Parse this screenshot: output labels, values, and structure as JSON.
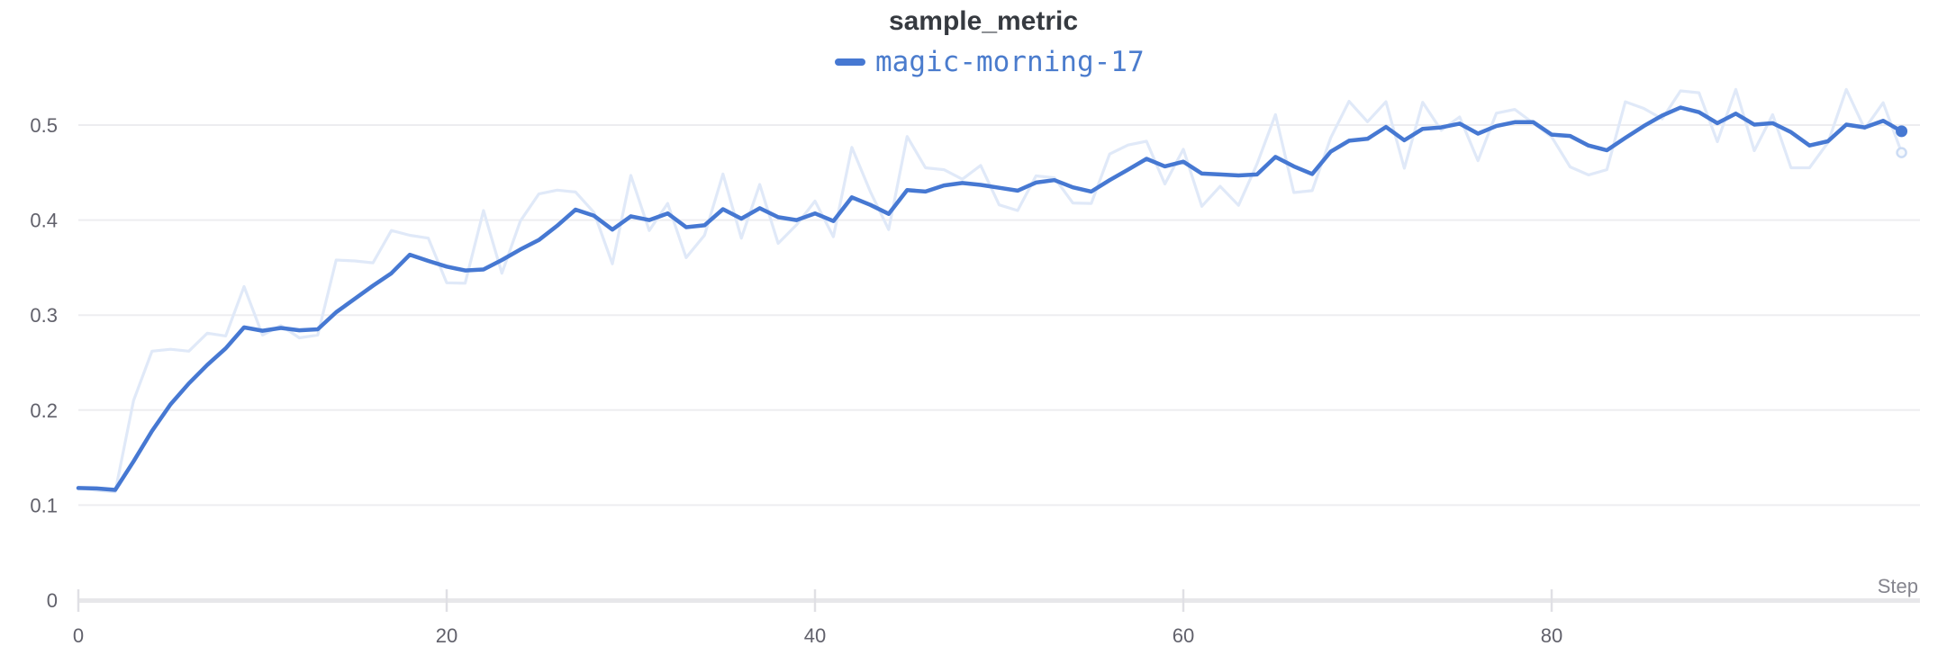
{
  "title": "sample_metric",
  "legend": {
    "run_name": "magic-morning-17"
  },
  "x_axis_label": "Step",
  "colors": {
    "smoothed_line": "#4678d2",
    "raw_line": "#e0e9f8",
    "raw_marker_ring": "#ccdcf4",
    "gridline": "#ededf0",
    "axis_band": "#e7e7ea",
    "tick_mark": "#e0e0e5",
    "title_text": "#363a40",
    "legend_text": "#4b7ccd",
    "tick_label_text": "#61616b"
  },
  "chart_data": {
    "type": "line",
    "title": "sample_metric",
    "xlabel": "Step",
    "ylabel": "",
    "xlim": [
      0,
      100
    ],
    "ylim": [
      0,
      0.55
    ],
    "grid": "horizontal",
    "legend_position": "top-center",
    "x_ticks": [
      0,
      20,
      40,
      60,
      80
    ],
    "y_ticks": [
      {
        "label": "0",
        "value": 0
      },
      {
        "label": "0.1",
        "value": 0.1
      },
      {
        "label": "0.2",
        "value": 0.2
      },
      {
        "label": "0.3",
        "value": 0.3
      },
      {
        "label": "0.4",
        "value": 0.4
      },
      {
        "label": "0.5",
        "value": 0.5
      }
    ],
    "steps": [
      0,
      1,
      2,
      3,
      4,
      5,
      6,
      7,
      8,
      9,
      10,
      11,
      12,
      13,
      14,
      15,
      16,
      17,
      18,
      19,
      20,
      21,
      22,
      23,
      24,
      25,
      26,
      27,
      28,
      29,
      30,
      31,
      32,
      33,
      34,
      35,
      36,
      37,
      38,
      39,
      40,
      41,
      42,
      43,
      44,
      45,
      46,
      47,
      48,
      49,
      50,
      51,
      52,
      53,
      54,
      55,
      56,
      57,
      58,
      59,
      60,
      61,
      62,
      63,
      64,
      65,
      66,
      67,
      68,
      69,
      70,
      71,
      72,
      73,
      74,
      75,
      76,
      77,
      78,
      79,
      80,
      81,
      82,
      83,
      84,
      85,
      86,
      87,
      88,
      89,
      90,
      91,
      92,
      93,
      94,
      95,
      96,
      97,
      98,
      99
    ],
    "series": [
      {
        "name": "magic-morning-17 (smoothed)",
        "values": [
          0.118,
          0.1175,
          0.116,
          0.146,
          0.178,
          0.206,
          0.228,
          0.2475,
          0.265,
          0.287,
          0.2835,
          0.2865,
          0.284,
          0.285,
          0.303,
          0.317,
          0.331,
          0.344,
          0.3635,
          0.357,
          0.351,
          0.347,
          0.348,
          0.358,
          0.369,
          0.379,
          0.394,
          0.411,
          0.4045,
          0.39,
          0.404,
          0.4,
          0.407,
          0.3925,
          0.3945,
          0.4115,
          0.4015,
          0.4125,
          0.403,
          0.4,
          0.407,
          0.399,
          0.424,
          0.416,
          0.4065,
          0.4315,
          0.43,
          0.4365,
          0.439,
          0.437,
          0.434,
          0.431,
          0.4395,
          0.442,
          0.4345,
          0.43,
          0.442,
          0.453,
          0.4645,
          0.4565,
          0.4615,
          0.449,
          0.448,
          0.447,
          0.448,
          0.4665,
          0.4565,
          0.4485,
          0.472,
          0.4835,
          0.4855,
          0.498,
          0.484,
          0.496,
          0.4975,
          0.5015,
          0.491,
          0.499,
          0.503,
          0.503,
          0.49,
          0.4885,
          0.4785,
          0.4735,
          0.4865,
          0.499,
          0.51,
          0.5185,
          0.5135,
          0.502,
          0.512,
          0.5005,
          0.502,
          0.4925,
          0.4785,
          0.483,
          0.5005,
          0.4975,
          0.5045,
          0.4935
        ]
      },
      {
        "name": "magic-morning-17 (raw)",
        "values": [
          0.118,
          0.1155,
          0.114,
          0.21,
          0.262,
          0.264,
          0.262,
          0.281,
          0.278,
          0.33,
          0.279,
          0.289,
          0.276,
          0.279,
          0.358,
          0.357,
          0.355,
          0.389,
          0.384,
          0.381,
          0.334,
          0.3335,
          0.41,
          0.344,
          0.399,
          0.4275,
          0.4315,
          0.4295,
          0.408,
          0.354,
          0.447,
          0.389,
          0.4175,
          0.3605,
          0.384,
          0.4485,
          0.381,
          0.4375,
          0.3755,
          0.395,
          0.42,
          0.3825,
          0.4765,
          0.43,
          0.39,
          0.488,
          0.455,
          0.453,
          0.443,
          0.4575,
          0.416,
          0.41,
          0.4465,
          0.4445,
          0.418,
          0.4175,
          0.4695,
          0.479,
          0.483,
          0.438,
          0.4745,
          0.4145,
          0.4355,
          0.4155,
          0.459,
          0.511,
          0.429,
          0.431,
          0.4865,
          0.525,
          0.5035,
          0.5245,
          0.4545,
          0.524,
          0.4945,
          0.5085,
          0.4625,
          0.5125,
          0.5165,
          0.502,
          0.4875,
          0.456,
          0.4475,
          0.453,
          0.5245,
          0.5175,
          0.5065,
          0.536,
          0.534,
          0.4825,
          0.5375,
          0.473,
          0.511,
          0.455,
          0.455,
          0.4815,
          0.5375,
          0.496,
          0.5235,
          0.471
        ]
      }
    ],
    "final_values": {
      "smoothed": 0.4935,
      "raw": 0.471
    }
  }
}
